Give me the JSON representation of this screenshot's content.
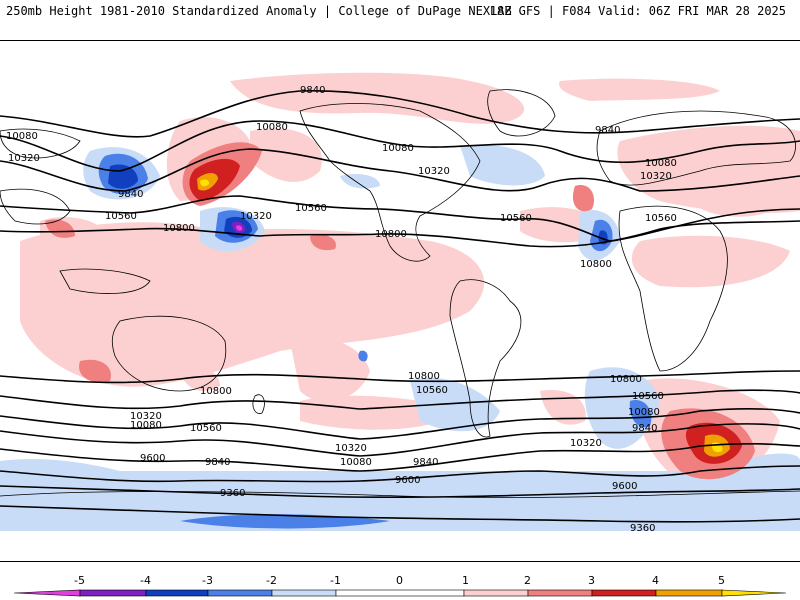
{
  "header": {
    "title_left": "250mb Height 1981-2010 Standardized Anomaly | College of DuPage NEXLAB",
    "title_right": "18Z GFS | F084 Valid: 06Z FRI MAR 28 2025"
  },
  "colors": {
    "neg5": "#e040e0",
    "neg4": "#8020c0",
    "neg3": "#1040c0",
    "neg2": "#4a80e8",
    "neg1": "#c8dcf8",
    "pos1": "#fcd0d0",
    "pos2": "#f08080",
    "pos3": "#d02020",
    "pos4": "#f0a000",
    "pos5": "#ffe000"
  },
  "colorbar": {
    "ticks": [
      "-5",
      "-4",
      "-3",
      "-2",
      "-1",
      "0",
      "1",
      "2",
      "3",
      "4",
      "5"
    ]
  },
  "contour_labels": [
    {
      "text": "9840"
    },
    {
      "text": "10080"
    },
    {
      "text": "10320"
    },
    {
      "text": "9840"
    },
    {
      "text": "10560"
    },
    {
      "text": "10080"
    },
    {
      "text": "10800"
    },
    {
      "text": "10320"
    },
    {
      "text": "10560"
    },
    {
      "text": "10800"
    },
    {
      "text": "10080"
    },
    {
      "text": "10320"
    },
    {
      "text": "9840"
    },
    {
      "text": "10560"
    },
    {
      "text": "10080"
    },
    {
      "text": "10320"
    },
    {
      "text": "10560"
    },
    {
      "text": "10800"
    },
    {
      "text": "10800"
    },
    {
      "text": "10560"
    },
    {
      "text": "10800"
    },
    {
      "text": "10560"
    },
    {
      "text": "10080"
    },
    {
      "text": "9840"
    },
    {
      "text": "10320"
    },
    {
      "text": "10080"
    },
    {
      "text": "10320"
    },
    {
      "text": "10560"
    },
    {
      "text": "10320"
    },
    {
      "text": "10080"
    },
    {
      "text": "9600"
    },
    {
      "text": "9840"
    },
    {
      "text": "9840"
    },
    {
      "text": "9600"
    },
    {
      "text": "9600"
    },
    {
      "text": "9360"
    },
    {
      "text": "9360"
    },
    {
      "text": "10800"
    }
  ]
}
